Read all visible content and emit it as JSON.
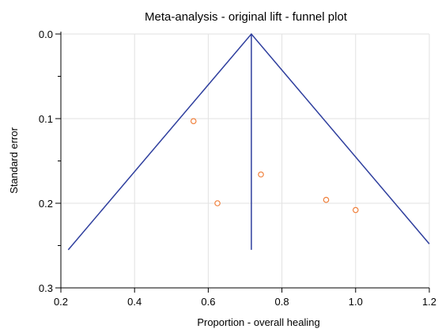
{
  "chart_data": {
    "type": "scatter",
    "title": "Meta-analysis - original lift  - funnel plot",
    "xlabel": "Proportion - overall  healing",
    "ylabel": "Standard error",
    "xlim": [
      0.2,
      1.2
    ],
    "ylim": [
      0.0,
      0.3
    ],
    "y_inverted": true,
    "grid": true,
    "xticks": [
      {
        "value": 0.2,
        "label": "0.2"
      },
      {
        "value": 0.4,
        "label": "0.4"
      },
      {
        "value": 0.6,
        "label": "0.6"
      },
      {
        "value": 0.8,
        "label": "0.8"
      },
      {
        "value": 1.0,
        "label": "1.0"
      },
      {
        "value": 1.2,
        "label": "1.2"
      }
    ],
    "yticks": [
      {
        "value": 0.0,
        "label": "0.0"
      },
      {
        "value": 0.1,
        "label": "0.1"
      },
      {
        "value": 0.2,
        "label": "0.2"
      },
      {
        "value": 0.3,
        "label": "0.3"
      }
    ],
    "y_minor_ticks": [
      0.05,
      0.15,
      0.25
    ],
    "points": [
      {
        "x": 0.56,
        "y": 0.103
      },
      {
        "x": 0.625,
        "y": 0.2
      },
      {
        "x": 0.743,
        "y": 0.166
      },
      {
        "x": 0.92,
        "y": 0.196
      },
      {
        "x": 1.0,
        "y": 0.208
      }
    ],
    "funnel": {
      "apex": {
        "x": 0.717,
        "y": 0.0
      },
      "left_end": {
        "x": 0.22,
        "y": 0.255
      },
      "right_end": {
        "x": 1.2,
        "y": 0.248
      },
      "center_line": {
        "x": 0.717,
        "y_from": 0.0,
        "y_to": 0.255
      }
    },
    "colors": {
      "points": "#f0803c",
      "funnel": "#2f3f9e",
      "grid": "#e2e2e2",
      "axis": "#000000"
    }
  }
}
